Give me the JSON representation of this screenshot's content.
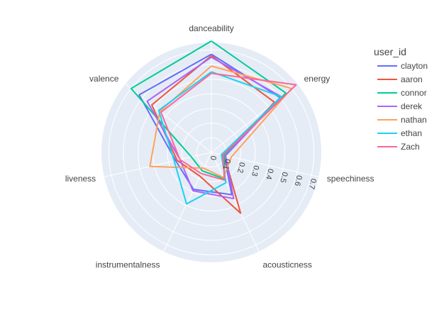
{
  "chart_data": {
    "type": "radar",
    "axes": [
      "danceability",
      "energy",
      "speechiness",
      "acousticness",
      "instrumentalness",
      "liveness",
      "valence"
    ],
    "radial_ticks": [
      "0",
      "0.1",
      "0.2",
      "0.3",
      "0.4",
      "0.5",
      "0.6",
      "0.7"
    ],
    "radial_range": [
      0,
      0.75
    ],
    "legend_title": "user_id",
    "legend_position": "right",
    "grid": true,
    "series": [
      {
        "name": "clayton",
        "color": "#636efa",
        "values": [
          0.67,
          0.6,
          0.09,
          0.32,
          0.28,
          0.25,
          0.63
        ]
      },
      {
        "name": "aaron",
        "color": "#ef553b",
        "values": [
          0.66,
          0.55,
          0.09,
          0.46,
          0.18,
          0.24,
          0.52
        ]
      },
      {
        "name": "connor",
        "color": "#00cc96",
        "values": [
          0.76,
          0.65,
          0.09,
          0.2,
          0.14,
          0.14,
          0.7
        ]
      },
      {
        "name": "derek",
        "color": "#ab63fa",
        "values": [
          0.65,
          0.61,
          0.1,
          0.35,
          0.29,
          0.22,
          0.56
        ]
      },
      {
        "name": "nathan",
        "color": "#ffa15a",
        "values": [
          0.59,
          0.7,
          0.14,
          0.19,
          0.12,
          0.43,
          0.45
        ]
      },
      {
        "name": "ethan",
        "color": "#19d3f3",
        "values": [
          0.55,
          0.61,
          0.07,
          0.23,
          0.39,
          0.26,
          0.46
        ]
      },
      {
        "name": "Zach",
        "color": "#ff6692",
        "values": [
          0.54,
          0.74,
          0.08,
          0.21,
          0.16,
          0.22,
          0.44
        ]
      }
    ]
  }
}
